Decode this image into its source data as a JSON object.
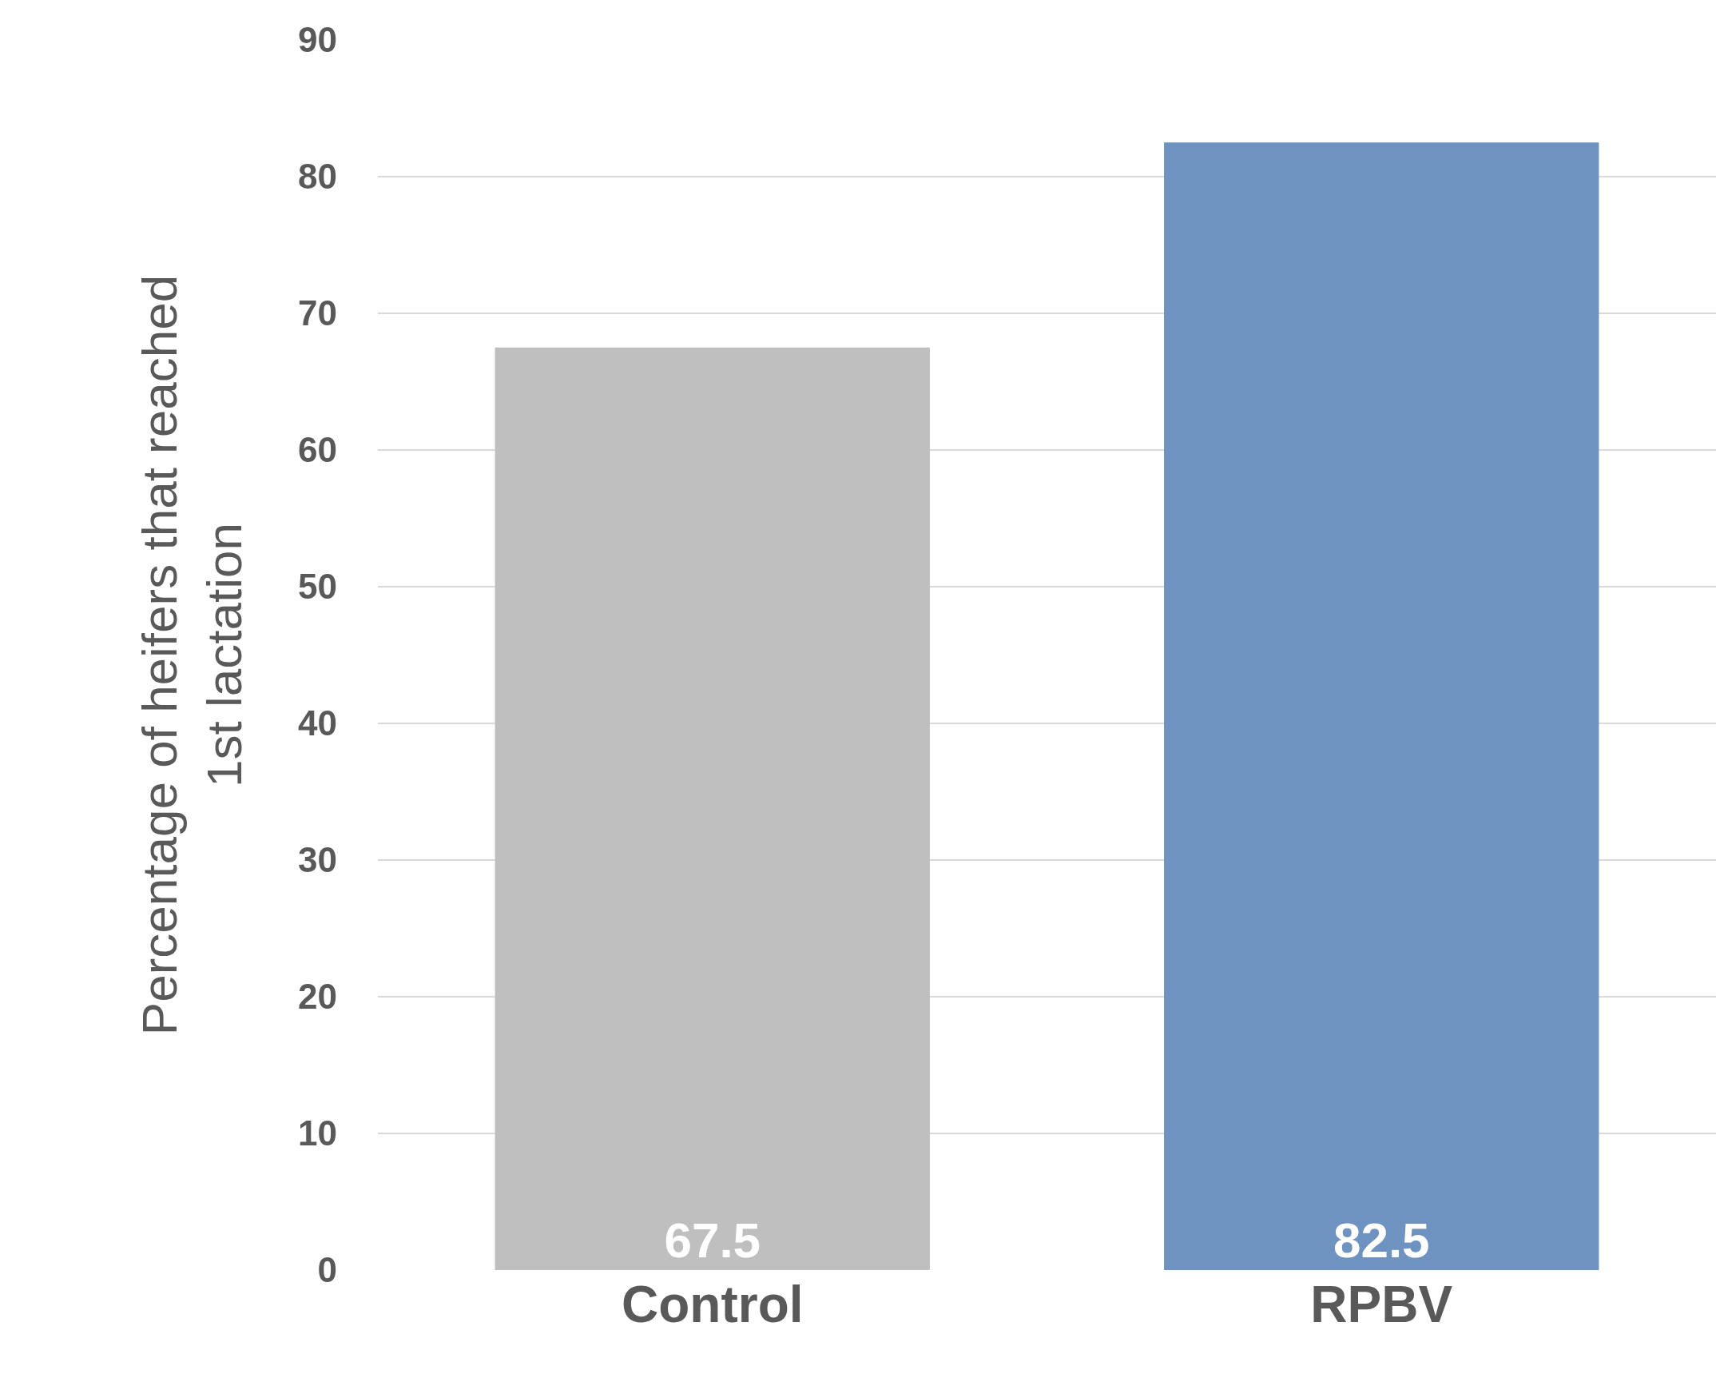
{
  "chart_data": {
    "type": "bar",
    "ylabel": "Percentage of heifers that reached 1st lactation",
    "categories": [
      "Control",
      "RPBV"
    ],
    "values": [
      67.5,
      82.5
    ],
    "colors": [
      "#bfbfbf",
      "#6e93c0"
    ],
    "ylim": [
      0,
      90
    ],
    "yticks": [
      0,
      10,
      20,
      30,
      40,
      50,
      60,
      70,
      80,
      90
    ],
    "grid": "y",
    "data_labels": true
  }
}
